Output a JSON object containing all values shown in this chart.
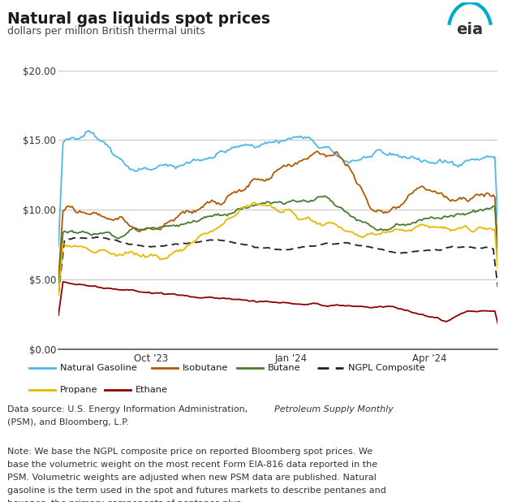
{
  "title": "Natural gas liquids spot prices",
  "subtitle": "dollars per million British thermal units",
  "ylim": [
    0,
    20
  ],
  "yticks": [
    0,
    5,
    10,
    15,
    20
  ],
  "ytick_labels": [
    "$0.00",
    "$5.00",
    "$10.00",
    "$15.00",
    "$20.00"
  ],
  "background_color": "#ffffff",
  "plot_bg_color": "#ffffff",
  "grid_color": "#c8c8c8",
  "series": {
    "Natural Gasoline": {
      "color": "#4db8e8",
      "lw": 1.3,
      "dashes": null
    },
    "Isobutane": {
      "color": "#b05a00",
      "lw": 1.3,
      "dashes": null
    },
    "Butane": {
      "color": "#4a7a30",
      "lw": 1.3,
      "dashes": null
    },
    "NGPL Composite": {
      "color": "#222222",
      "lw": 1.3,
      "dashes": [
        5,
        3
      ]
    },
    "Propane": {
      "color": "#e8b800",
      "lw": 1.3,
      "dashes": null
    },
    "Ethane": {
      "color": "#8b0000",
      "lw": 1.3,
      "dashes": null
    }
  },
  "legend_bg": "#ebebeb",
  "eia_color": "#00aacc"
}
